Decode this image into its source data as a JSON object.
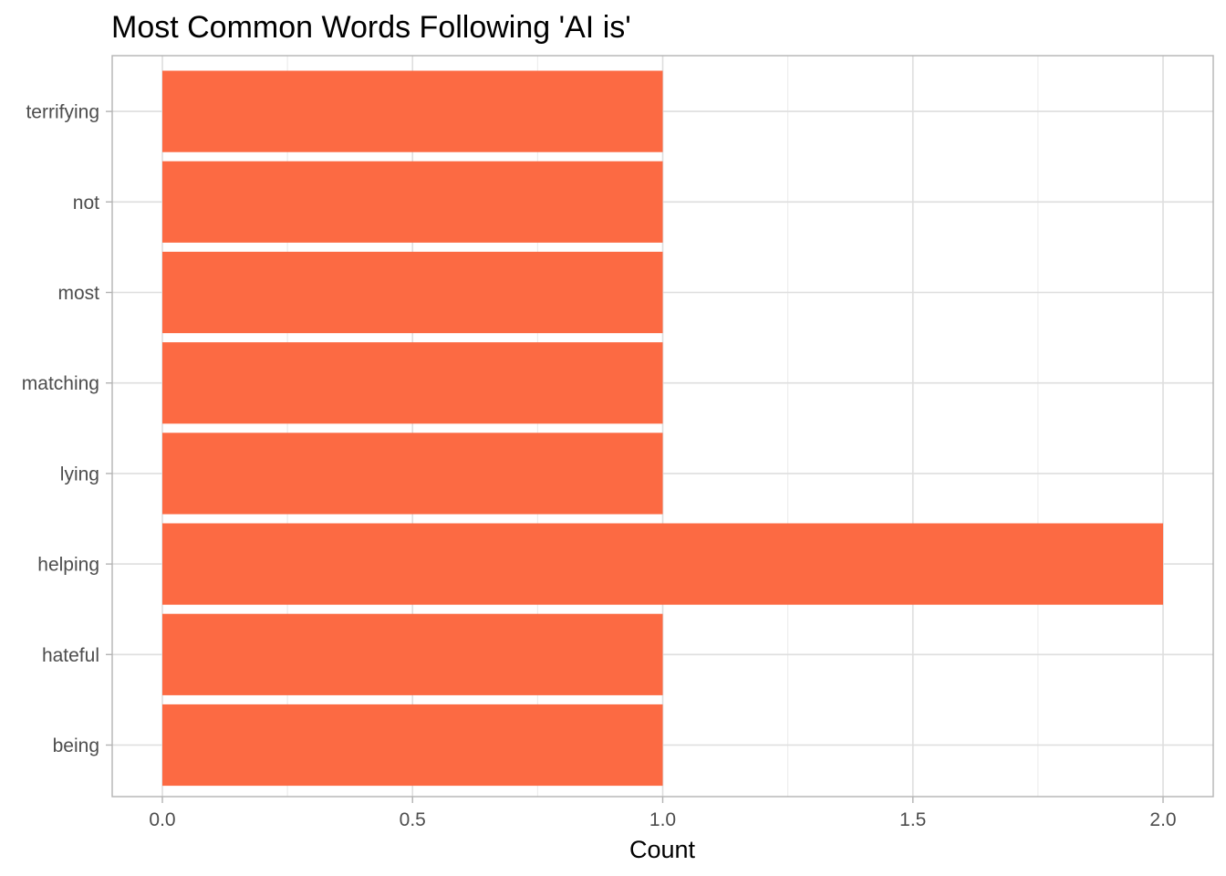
{
  "chart_data": {
    "type": "bar",
    "orientation": "horizontal",
    "title": "Most Common Words Following 'AI is'",
    "xlabel": "Count",
    "ylabel": "",
    "categories": [
      "being",
      "hateful",
      "helping",
      "lying",
      "matching",
      "most",
      "not",
      "terrifying"
    ],
    "values": [
      1,
      1,
      2,
      1,
      1,
      1,
      1,
      1
    ],
    "xlim": [
      0,
      2
    ],
    "x_ticks": [
      0.0,
      0.5,
      1.0,
      1.5,
      2.0
    ],
    "x_tick_labels": [
      "0.0",
      "0.5",
      "1.0",
      "1.5",
      "2.0"
    ],
    "grid": true,
    "legend": "none",
    "colors": {
      "bar": "#fc6a43",
      "grid_major": "#dedede",
      "grid_minor": "#ececec",
      "panel_border": "#b3b3b3",
      "tick_text": "#4d4d4d"
    }
  }
}
